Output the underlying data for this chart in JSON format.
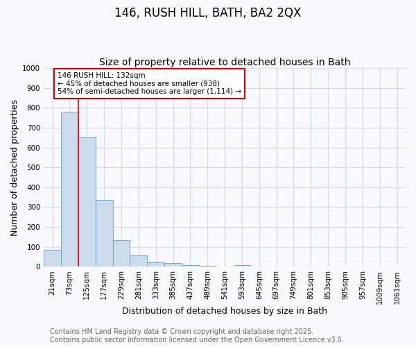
{
  "title1": "146, RUSH HILL, BATH, BA2 2QX",
  "title2": "Size of property relative to detached houses in Bath",
  "xlabel": "Distribution of detached houses by size in Bath",
  "ylabel": "Number of detached properties",
  "bar_color": "#ccdcec",
  "bar_edge_color": "#6699bb",
  "vline_color": "#cc0000",
  "vline_x_index": 1.5,
  "annotation_text": "146 RUSH HILL: 132sqm\n← 45% of detached houses are smaller (938)\n54% of semi-detached houses are larger (1,114) →",
  "annotation_box_color": "#cc0000",
  "annotation_fill": "white",
  "categories": [
    "21sqm",
    "73sqm",
    "125sqm",
    "177sqm",
    "229sqm",
    "281sqm",
    "333sqm",
    "385sqm",
    "437sqm",
    "489sqm",
    "541sqm",
    "593sqm",
    "645sqm",
    "697sqm",
    "749sqm",
    "801sqm",
    "853sqm",
    "905sqm",
    "957sqm",
    "1009sqm",
    "1061sqm"
  ],
  "values": [
    85,
    780,
    650,
    335,
    133,
    57,
    23,
    18,
    8,
    5,
    0,
    8,
    0,
    0,
    0,
    0,
    0,
    0,
    0,
    0,
    0
  ],
  "ylim": [
    0,
    1000
  ],
  "yticks": [
    0,
    100,
    200,
    300,
    400,
    500,
    600,
    700,
    800,
    900,
    1000
  ],
  "footer_text": "Contains HM Land Registry data © Crown copyright and database right 2025.\nContains public sector information licensed under the Open Government Licence v3.0.",
  "background_color": "#f8f8ff",
  "plot_bg_color": "#f8f8ff",
  "grid_color": "#d0d8e8",
  "title_fontsize": 12,
  "subtitle_fontsize": 10,
  "axis_fontsize": 9,
  "tick_fontsize": 7.5,
  "footer_fontsize": 7
}
